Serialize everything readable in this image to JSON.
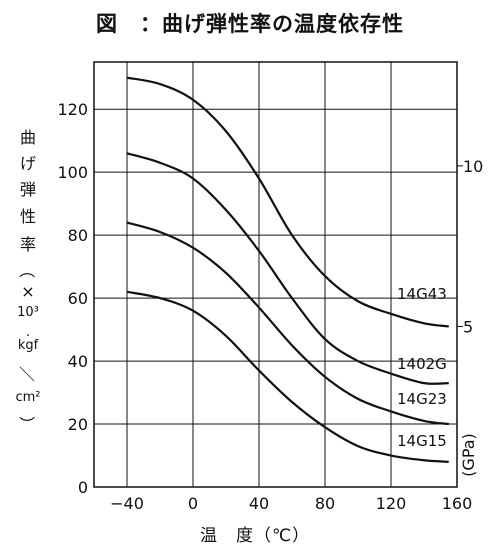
{
  "chart_data": {
    "type": "line",
    "title": "図　：曲げ弾性率の温度依存性",
    "xlabel": "温　度（℃）",
    "ylabel_chars": [
      "曲",
      "げ",
      "弾",
      "性",
      "率",
      "（",
      "×",
      "10³",
      "·",
      "kgf",
      "／",
      "cm²",
      "）"
    ],
    "y2_unit": "(GPa)",
    "xlim": [
      -60,
      160
    ],
    "ylim": [
      0,
      135
    ],
    "x_ticks": [
      -40,
      0,
      40,
      80,
      120,
      160
    ],
    "x_tick_labels": [
      "−40",
      "0",
      "40",
      "80",
      "120",
      "160"
    ],
    "y_ticks": [
      0,
      20,
      40,
      60,
      80,
      100,
      120
    ],
    "y_tick_labels": [
      "0",
      "20",
      "40",
      "60",
      "80",
      "100",
      "120"
    ],
    "y2_ticks": [
      {
        "label": "5",
        "value": 51
      },
      {
        "label": "10",
        "value": 102
      }
    ],
    "grid": true,
    "series": [
      {
        "name": "14G43",
        "x": [
          -40,
          -20,
          0,
          20,
          40,
          60,
          80,
          100,
          120,
          140,
          155
        ],
        "y": [
          130,
          128,
          123,
          113,
          98,
          80,
          67,
          59,
          55,
          52,
          51
        ]
      },
      {
        "name": "1402G",
        "x": [
          -40,
          -20,
          0,
          20,
          40,
          60,
          80,
          100,
          120,
          140,
          155
        ],
        "y": [
          106,
          103,
          98,
          88,
          75,
          60,
          47,
          40,
          36,
          33,
          33
        ]
      },
      {
        "name": "14G23",
        "x": [
          -40,
          -20,
          0,
          20,
          40,
          60,
          80,
          100,
          120,
          140,
          155
        ],
        "y": [
          84,
          81,
          76,
          68,
          57,
          45,
          35,
          28,
          24,
          21,
          20
        ]
      },
      {
        "name": "14G15",
        "x": [
          -40,
          -20,
          0,
          20,
          40,
          60,
          80,
          100,
          120,
          140,
          155
        ],
        "y": [
          62,
          60,
          56,
          48,
          37,
          27,
          19,
          13,
          10,
          8.5,
          8
        ]
      }
    ]
  }
}
